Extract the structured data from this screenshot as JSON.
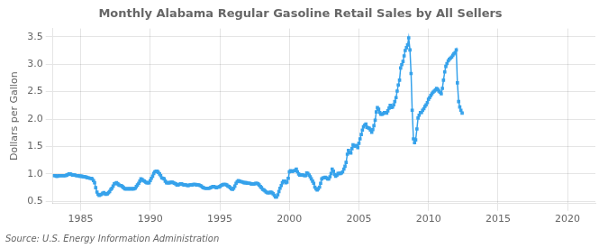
{
  "chart_data": {
    "type": "line",
    "title": "Monthly Alabama Regular Gasoline Retail Sales by All Sellers",
    "y_label": "Dollars per Gallon",
    "annotation": "Source: U.S. Energy Information Administration",
    "marker": "square",
    "grid": true,
    "xlim": [
      1983,
      2022
    ],
    "ylim": [
      0.46,
      3.65
    ],
    "xticks": [
      1985,
      1990,
      1995,
      2000,
      2005,
      2010,
      2015,
      2020
    ],
    "yticks": [
      0.5,
      {
        "value": 1.0,
        "label": "1.0"
      },
      1.5,
      {
        "value": 2.0,
        "label": "2.0"
      },
      2.5,
      {
        "value": 3.0,
        "label": "3.0"
      },
      3.5
    ],
    "x": [
      1983.08,
      1983.17,
      1983.25,
      1983.33,
      1983.42,
      1983.5,
      1983.58,
      1983.67,
      1983.75,
      1983.83,
      1983.92,
      1984.0,
      1984.08,
      1984.17,
      1984.25,
      1984.33,
      1984.42,
      1984.5,
      1984.58,
      1984.67,
      1984.75,
      1984.83,
      1984.92,
      1985.0,
      1985.08,
      1985.17,
      1985.25,
      1985.33,
      1985.42,
      1985.5,
      1985.58,
      1985.67,
      1985.75,
      1985.83,
      1985.92,
      1986.0,
      1986.08,
      1986.17,
      1986.25,
      1986.33,
      1986.42,
      1986.5,
      1986.58,
      1986.67,
      1986.75,
      1986.83,
      1986.92,
      1987.0,
      1987.08,
      1987.17,
      1987.25,
      1987.33,
      1987.42,
      1987.5,
      1987.58,
      1987.67,
      1987.75,
      1987.83,
      1987.92,
      1988.0,
      1988.08,
      1988.17,
      1988.25,
      1988.33,
      1988.42,
      1988.5,
      1988.58,
      1988.67,
      1988.75,
      1988.83,
      1988.92,
      1989.0,
      1989.08,
      1989.17,
      1989.25,
      1989.33,
      1989.42,
      1989.5,
      1989.58,
      1989.67,
      1989.75,
      1989.83,
      1989.92,
      1990.0,
      1990.08,
      1990.17,
      1990.25,
      1990.33,
      1990.42,
      1990.5,
      1990.58,
      1990.67,
      1990.75,
      1990.83,
      1990.92,
      1991.0,
      1991.08,
      1991.17,
      1991.25,
      1991.33,
      1991.42,
      1991.5,
      1991.58,
      1991.67,
      1991.75,
      1991.83,
      1991.92,
      1992.0,
      1992.08,
      1992.17,
      1992.25,
      1992.33,
      1992.42,
      1992.5,
      1992.58,
      1992.67,
      1992.75,
      1992.83,
      1992.92,
      1993.0,
      1993.08,
      1993.17,
      1993.25,
      1993.33,
      1993.42,
      1993.5,
      1993.58,
      1993.67,
      1993.75,
      1993.83,
      1993.92,
      1994.0,
      1994.08,
      1994.17,
      1994.25,
      1994.33,
      1994.42,
      1994.5,
      1994.58,
      1994.67,
      1994.75,
      1994.83,
      1994.92,
      1995.0,
      1995.08,
      1995.17,
      1995.25,
      1995.33,
      1995.42,
      1995.5,
      1995.58,
      1995.67,
      1995.75,
      1995.83,
      1995.92,
      1996.0,
      1996.08,
      1996.17,
      1996.25,
      1996.33,
      1996.42,
      1996.5,
      1996.58,
      1996.67,
      1996.75,
      1996.83,
      1996.92,
      1997.0,
      1997.08,
      1997.17,
      1997.25,
      1997.33,
      1997.42,
      1997.5,
      1997.58,
      1997.67,
      1997.75,
      1997.83,
      1997.92,
      1998.0,
      1998.08,
      1998.17,
      1998.25,
      1998.33,
      1998.42,
      1998.5,
      1998.58,
      1998.67,
      1998.75,
      1998.83,
      1998.92,
      1999.0,
      1999.08,
      1999.17,
      1999.25,
      1999.33,
      1999.42,
      1999.5,
      1999.58,
      1999.67,
      1999.75,
      1999.83,
      1999.92,
      2000.0,
      2000.08,
      2000.17,
      2000.25,
      2000.33,
      2000.42,
      2000.5,
      2000.58,
      2000.67,
      2000.75,
      2000.83,
      2000.92,
      2001.0,
      2001.08,
      2001.17,
      2001.25,
      2001.33,
      2001.42,
      2001.5,
      2001.58,
      2001.67,
      2001.75,
      2001.83,
      2001.92,
      2002.0,
      2002.08,
      2002.17,
      2002.25,
      2002.33,
      2002.42,
      2002.5,
      2002.58,
      2002.67,
      2002.75,
      2002.83,
      2002.92,
      2003.0,
      2003.08,
      2003.17,
      2003.25,
      2003.33,
      2003.42,
      2003.5,
      2003.58,
      2003.67,
      2003.75,
      2003.83,
      2003.92,
      2004.0,
      2004.08,
      2004.17,
      2004.25,
      2004.33,
      2004.42,
      2004.5,
      2004.58,
      2004.67,
      2004.75,
      2004.83,
      2004.92,
      2005.0,
      2005.08,
      2005.17,
      2005.25,
      2005.33,
      2005.42,
      2005.5,
      2005.58,
      2005.67,
      2005.75,
      2005.83,
      2005.92,
      2006.0,
      2006.08,
      2006.17,
      2006.25,
      2006.33,
      2006.42,
      2006.5,
      2006.58,
      2006.67,
      2006.75,
      2006.83,
      2006.92,
      2007.0,
      2007.08,
      2007.17,
      2007.25,
      2007.33,
      2007.42,
      2007.5,
      2007.58,
      2007.67,
      2007.75,
      2007.83,
      2007.92,
      2008.0,
      2008.08,
      2008.17,
      2008.25,
      2008.33,
      2008.42,
      2008.5,
      2008.58,
      2008.67,
      2008.75,
      2008.83,
      2008.92,
      2009.0,
      2009.08,
      2009.17,
      2009.25,
      2009.33,
      2009.42,
      2009.5,
      2009.58,
      2009.67,
      2009.75,
      2009.83,
      2009.92,
      2010.0,
      2010.08,
      2010.17,
      2010.25,
      2010.33,
      2010.42,
      2010.5,
      2010.58,
      2010.67,
      2010.75,
      2010.83,
      2010.92,
      2011.0,
      2011.08,
      2011.17,
      2011.25,
      2011.33,
      2011.42,
      2011.5,
      2011.58,
      2011.67,
      2011.75,
      2011.83,
      2011.92,
      2012.0,
      2012.08,
      2012.17,
      2012.25,
      2012.33,
      2012.42
    ],
    "values": [
      0.97,
      0.97,
      0.96,
      0.96,
      0.97,
      0.97,
      0.97,
      0.97,
      0.97,
      0.97,
      0.97,
      0.98,
      0.99,
      1.0,
      1.0,
      0.99,
      0.98,
      0.98,
      0.98,
      0.97,
      0.97,
      0.97,
      0.96,
      0.96,
      0.96,
      0.95,
      0.95,
      0.95,
      0.94,
      0.93,
      0.93,
      0.92,
      0.92,
      0.91,
      0.88,
      0.84,
      0.75,
      0.67,
      0.63,
      0.61,
      0.62,
      0.63,
      0.65,
      0.66,
      0.64,
      0.63,
      0.64,
      0.66,
      0.68,
      0.72,
      0.74,
      0.78,
      0.82,
      0.83,
      0.84,
      0.82,
      0.8,
      0.79,
      0.79,
      0.77,
      0.75,
      0.73,
      0.73,
      0.73,
      0.73,
      0.73,
      0.73,
      0.73,
      0.73,
      0.73,
      0.74,
      0.77,
      0.8,
      0.83,
      0.87,
      0.91,
      0.9,
      0.88,
      0.87,
      0.85,
      0.84,
      0.84,
      0.84,
      0.88,
      0.92,
      0.96,
      1.01,
      1.04,
      1.05,
      1.05,
      1.03,
      1.0,
      0.97,
      0.93,
      0.92,
      0.91,
      0.87,
      0.84,
      0.84,
      0.84,
      0.84,
      0.85,
      0.85,
      0.84,
      0.83,
      0.82,
      0.8,
      0.8,
      0.81,
      0.82,
      0.82,
      0.81,
      0.8,
      0.8,
      0.8,
      0.79,
      0.79,
      0.8,
      0.8,
      0.8,
      0.81,
      0.81,
      0.81,
      0.8,
      0.8,
      0.8,
      0.79,
      0.78,
      0.76,
      0.75,
      0.74,
      0.74,
      0.74,
      0.74,
      0.74,
      0.75,
      0.76,
      0.77,
      0.77,
      0.76,
      0.75,
      0.76,
      0.76,
      0.77,
      0.79,
      0.8,
      0.81,
      0.81,
      0.81,
      0.8,
      0.78,
      0.77,
      0.75,
      0.73,
      0.72,
      0.74,
      0.78,
      0.83,
      0.86,
      0.88,
      0.87,
      0.86,
      0.86,
      0.85,
      0.84,
      0.84,
      0.84,
      0.83,
      0.83,
      0.83,
      0.82,
      0.82,
      0.82,
      0.82,
      0.83,
      0.83,
      0.82,
      0.8,
      0.77,
      0.75,
      0.72,
      0.71,
      0.69,
      0.67,
      0.66,
      0.66,
      0.66,
      0.67,
      0.66,
      0.64,
      0.61,
      0.58,
      0.58,
      0.62,
      0.68,
      0.74,
      0.79,
      0.84,
      0.87,
      0.87,
      0.84,
      0.85,
      0.92,
      1.04,
      1.06,
      1.05,
      1.05,
      1.06,
      1.06,
      1.09,
      1.04,
      1.0,
      0.98,
      0.98,
      0.98,
      0.98,
      0.97,
      0.97,
      1.02,
      1.01,
      0.98,
      0.95,
      0.91,
      0.87,
      0.83,
      0.76,
      0.73,
      0.71,
      0.73,
      0.76,
      0.83,
      0.91,
      0.93,
      0.93,
      0.94,
      0.93,
      0.91,
      0.91,
      0.95,
      1.01,
      1.09,
      1.05,
      0.99,
      0.96,
      0.98,
      1.01,
      1.01,
      1.01,
      1.02,
      1.04,
      1.09,
      1.14,
      1.21,
      1.36,
      1.43,
      1.39,
      1.38,
      1.46,
      1.53,
      1.51,
      1.51,
      1.52,
      1.48,
      1.56,
      1.64,
      1.72,
      1.8,
      1.86,
      1.89,
      1.91,
      1.85,
      1.84,
      1.83,
      1.8,
      1.76,
      1.81,
      1.88,
      1.98,
      2.13,
      2.21,
      2.18,
      2.12,
      2.09,
      2.09,
      2.1,
      2.12,
      2.12,
      2.11,
      2.15,
      2.2,
      2.25,
      2.21,
      2.22,
      2.26,
      2.32,
      2.39,
      2.51,
      2.62,
      2.71,
      2.93,
      2.99,
      3.05,
      3.15,
      3.25,
      3.3,
      3.35,
      3.48,
      3.26,
      2.83,
      2.16,
      1.64,
      1.57,
      1.62,
      1.82,
      2.02,
      2.07,
      2.12,
      2.12,
      2.16,
      2.19,
      2.23,
      2.26,
      2.3,
      2.36,
      2.39,
      2.43,
      2.46,
      2.49,
      2.51,
      2.53,
      2.56,
      2.54,
      2.51,
      2.49,
      2.46,
      2.56,
      2.71,
      2.86,
      2.96,
      3.01,
      3.06,
      3.09,
      3.11,
      3.13,
      3.16,
      3.19,
      3.21,
      3.26,
      2.66,
      2.32,
      2.22,
      2.16,
      2.11
    ]
  }
}
